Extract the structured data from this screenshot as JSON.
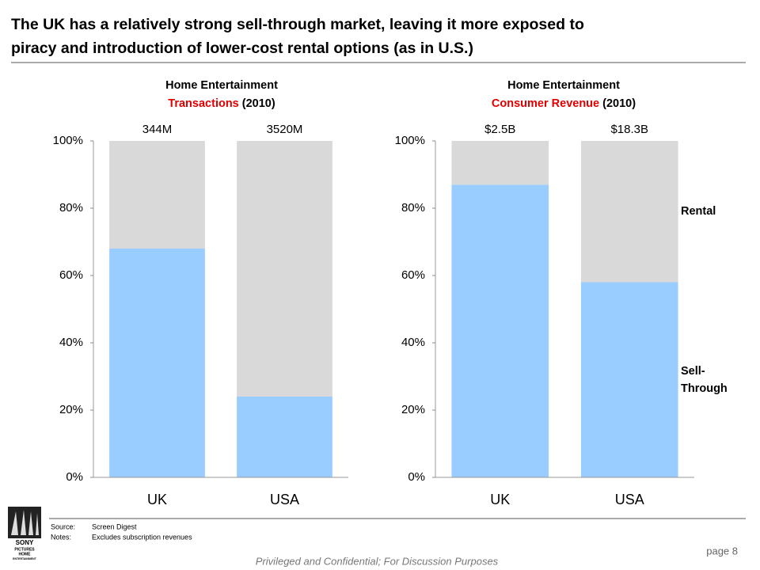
{
  "title": [
    "The UK has a relatively strong sell-through market, leaving it more exposed to",
    "piracy and introduction of lower-cost rental options (as in U.S.)"
  ],
  "chart_data": [
    {
      "type": "stacked_bar",
      "title": "Home Entertainment",
      "metric": "Transactions",
      "period": "(2010)",
      "categories": [
        "UK",
        "USA"
      ],
      "annotations": [
        "344M",
        "3520M"
      ],
      "series": [
        {
          "color": "#99ccff",
          "values": [
            68,
            24
          ]
        },
        {
          "color": "#d9d9d9",
          "values": [
            32,
            76
          ]
        }
      ],
      "ylim": [
        0,
        100
      ],
      "yticks": [
        {
          "value": 0,
          "label": "0%"
        },
        {
          "value": 20,
          "label": "20%"
        },
        {
          "value": 40,
          "label": "40%"
        },
        {
          "value": 60,
          "label": "60%"
        },
        {
          "value": 80,
          "label": "80%"
        },
        {
          "value": 100,
          "label": "100%"
        }
      ]
    },
    {
      "type": "stacked_bar",
      "title": "Home Entertainment",
      "metric": "Consumer Revenue",
      "period": "(2010)",
      "categories": [
        "UK",
        "USA"
      ],
      "annotations": [
        "$2.5B",
        "$18.3B"
      ],
      "series": [
        {
          "name": "Sell-Through",
          "color": "#99ccff",
          "values": [
            87,
            58
          ]
        },
        {
          "name": "Rental",
          "color": "#d9d9d9",
          "values": [
            13,
            42
          ]
        }
      ],
      "ylim": [
        0,
        100
      ],
      "legend": "right",
      "yticks": [
        {
          "value": 0,
          "label": "0%"
        },
        {
          "value": 20,
          "label": "20%"
        },
        {
          "value": 40,
          "label": "40%"
        },
        {
          "value": 60,
          "label": "60%"
        },
        {
          "value": 80,
          "label": "80%"
        },
        {
          "value": 100,
          "label": "100%"
        }
      ]
    }
  ],
  "footer": {
    "source_label": "Source:",
    "source": "Screen Digest",
    "notes_label": "Notes:",
    "notes": "Excludes subscription revenues",
    "confidential": "Privileged and Confidential; For Discussion Purposes",
    "page": "page 8"
  },
  "logo": [
    "SONY",
    "PICTURES",
    "HOME",
    "ENTERTAINMENT"
  ]
}
